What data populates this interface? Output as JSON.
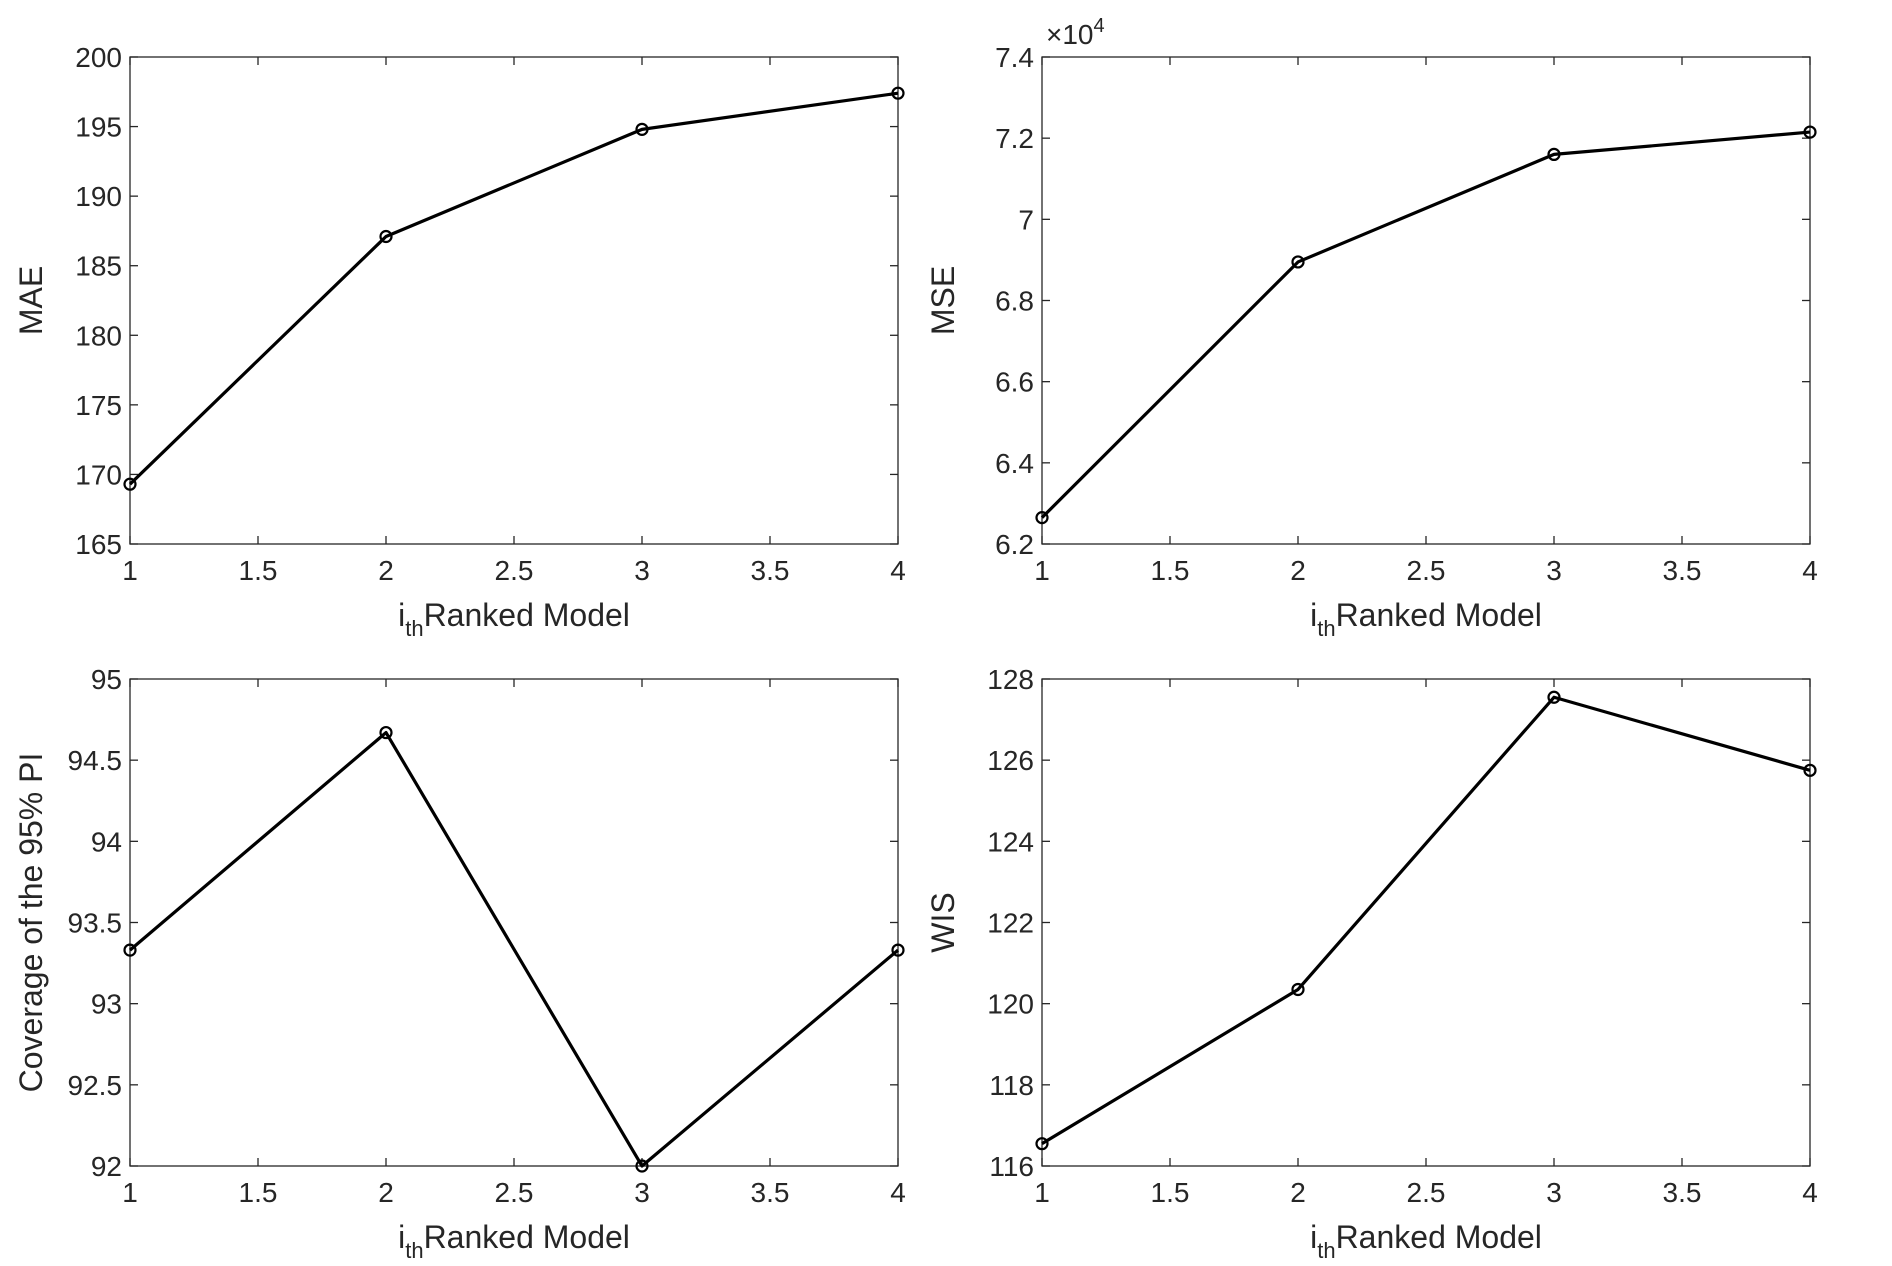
{
  "chart_data": [
    {
      "type": "line",
      "xlabel_main": "i",
      "xlabel_sub": "th",
      "xlabel_rest": "Ranked Model",
      "ylabel": "MAE",
      "xlim": [
        1,
        4
      ],
      "ylim": [
        165,
        200
      ],
      "xticks": [
        1,
        1.5,
        2,
        2.5,
        3,
        3.5,
        4
      ],
      "xtick_labels": [
        "1",
        "1.5",
        "2",
        "2.5",
        "3",
        "3.5",
        "4"
      ],
      "yticks": [
        165,
        170,
        175,
        180,
        185,
        190,
        195,
        200
      ],
      "ytick_labels": [
        "165",
        "170",
        "175",
        "180",
        "185",
        "190",
        "195",
        "200"
      ],
      "exponent": null,
      "x": [
        1,
        2,
        3,
        4
      ],
      "y": [
        169.3,
        187.1,
        194.8,
        197.4
      ],
      "grid": false,
      "line_color": "#000000"
    },
    {
      "type": "line",
      "xlabel_main": "i",
      "xlabel_sub": "th",
      "xlabel_rest": "Ranked Model",
      "ylabel": "MSE",
      "xlim": [
        1,
        4
      ],
      "ylim": [
        62000,
        74000
      ],
      "xticks": [
        1,
        1.5,
        2,
        2.5,
        3,
        3.5,
        4
      ],
      "xtick_labels": [
        "1",
        "1.5",
        "2",
        "2.5",
        "3",
        "3.5",
        "4"
      ],
      "yticks": [
        62000,
        64000,
        66000,
        68000,
        70000,
        72000,
        74000
      ],
      "ytick_labels": [
        "6.2",
        "6.4",
        "6.6",
        "6.8",
        "7",
        "7.2",
        "7.4"
      ],
      "exponent": {
        "base": "×10",
        "power": "4"
      },
      "x": [
        1,
        2,
        3,
        4
      ],
      "y": [
        62650,
        68950,
        71600,
        72150
      ],
      "grid": false,
      "line_color": "#000000"
    },
    {
      "type": "line",
      "xlabel_main": "i",
      "xlabel_sub": "th",
      "xlabel_rest": "Ranked Model",
      "ylabel": "Coverage of the 95% PI",
      "xlim": [
        1,
        4
      ],
      "ylim": [
        92,
        95
      ],
      "xticks": [
        1,
        1.5,
        2,
        2.5,
        3,
        3.5,
        4
      ],
      "xtick_labels": [
        "1",
        "1.5",
        "2",
        "2.5",
        "3",
        "3.5",
        "4"
      ],
      "yticks": [
        92,
        92.5,
        93,
        93.5,
        94,
        94.5,
        95
      ],
      "ytick_labels": [
        "92",
        "92.5",
        "93",
        "93.5",
        "94",
        "94.5",
        "95"
      ],
      "exponent": null,
      "x": [
        1,
        2,
        3,
        4
      ],
      "y": [
        93.33,
        94.67,
        92.0,
        93.33
      ],
      "grid": false,
      "line_color": "#000000"
    },
    {
      "type": "line",
      "xlabel_main": "i",
      "xlabel_sub": "th",
      "xlabel_rest": "Ranked Model",
      "ylabel": "WIS",
      "xlim": [
        1,
        4
      ],
      "ylim": [
        116,
        128
      ],
      "xticks": [
        1,
        1.5,
        2,
        2.5,
        3,
        3.5,
        4
      ],
      "xtick_labels": [
        "1",
        "1.5",
        "2",
        "2.5",
        "3",
        "3.5",
        "4"
      ],
      "yticks": [
        116,
        118,
        120,
        122,
        124,
        126,
        128
      ],
      "ytick_labels": [
        "116",
        "118",
        "120",
        "122",
        "124",
        "126",
        "128"
      ],
      "exponent": null,
      "x": [
        1,
        2,
        3,
        4
      ],
      "y": [
        116.55,
        120.35,
        127.55,
        125.75
      ],
      "grid": false,
      "line_color": "#000000"
    }
  ]
}
